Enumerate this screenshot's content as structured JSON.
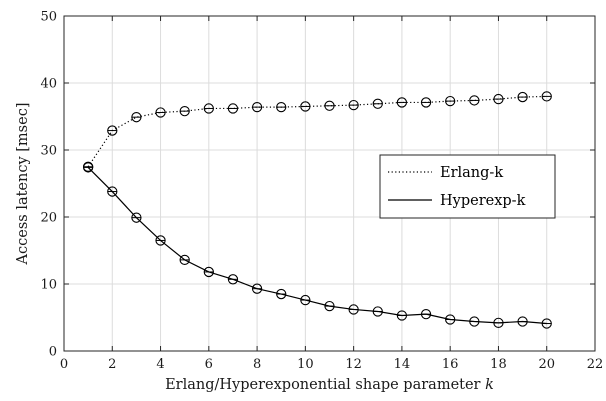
{
  "chart_data": {
    "type": "line",
    "title": "",
    "xlabel": "Erlang/Hyperexponential shape parameter",
    "xlabel_var": "k",
    "ylabel": "Access latency [msec]",
    "xlim": [
      0,
      22
    ],
    "ylim": [
      0,
      50
    ],
    "xticks": [
      0,
      2,
      4,
      6,
      8,
      10,
      12,
      14,
      16,
      18,
      20,
      22
    ],
    "yticks": [
      0,
      10,
      20,
      30,
      40,
      50
    ],
    "grid": true,
    "legend_position": "right-middle",
    "x": [
      1,
      2,
      3,
      4,
      5,
      6,
      7,
      8,
      9,
      10,
      11,
      12,
      13,
      14,
      15,
      16,
      17,
      18,
      19,
      20
    ],
    "series": [
      {
        "name": "Erlang-k",
        "line_style": "dotted",
        "marker": "circle-with-errorbar",
        "color": "#000000",
        "values": [
          27.5,
          32.9,
          34.9,
          35.6,
          35.8,
          36.2,
          36.2,
          36.4,
          36.4,
          36.5,
          36.6,
          36.7,
          36.9,
          37.1,
          37.1,
          37.3,
          37.4,
          37.6,
          37.9,
          38.0
        ]
      },
      {
        "name": "Hyperexp-k",
        "line_style": "solid",
        "marker": "circle-with-errorbar",
        "color": "#000000",
        "values": [
          27.4,
          23.8,
          19.9,
          16.5,
          13.6,
          11.8,
          10.7,
          9.3,
          8.5,
          7.6,
          6.7,
          6.2,
          5.9,
          5.3,
          5.5,
          4.7,
          4.4,
          4.2,
          4.4,
          4.1
        ]
      }
    ]
  }
}
